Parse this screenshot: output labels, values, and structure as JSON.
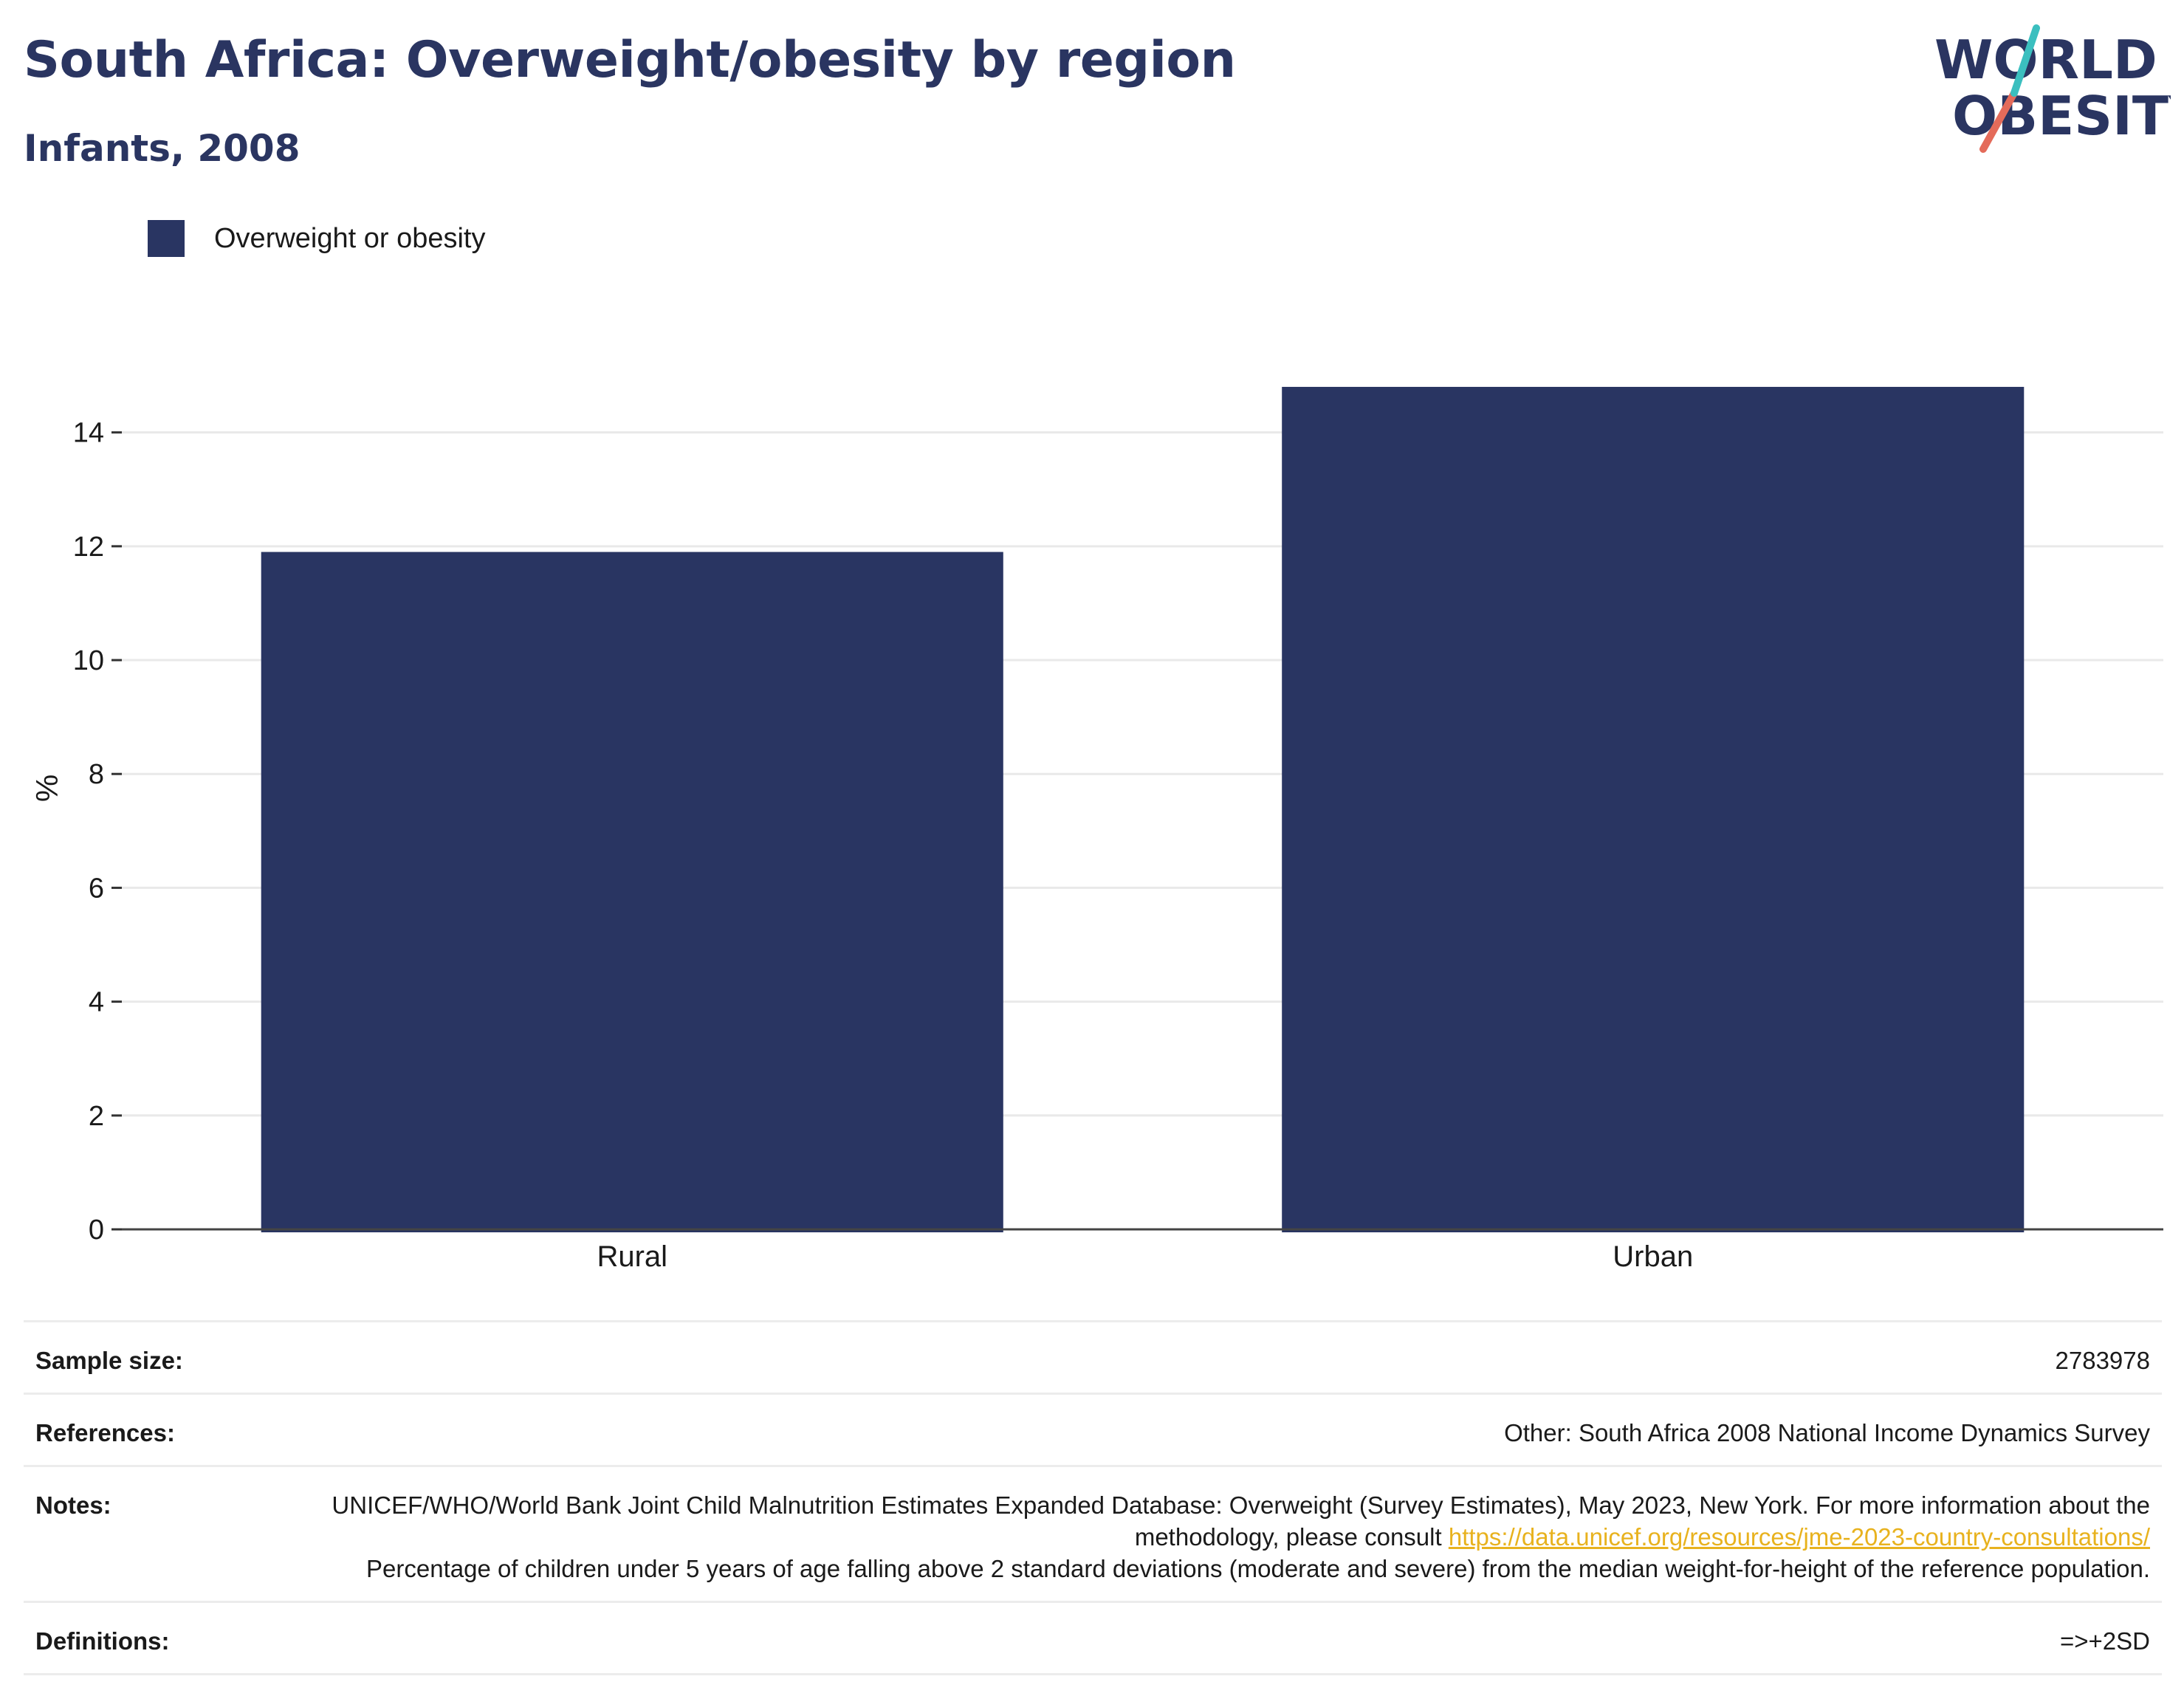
{
  "header": {
    "title": "South Africa: Overweight/obesity by region",
    "subtitle": "Infants, 2008"
  },
  "logo": {
    "line1": "WORLD",
    "line2": "OBESITY",
    "colors": {
      "navy": "#2a3561",
      "teal": "#3bbfbf",
      "coral": "#e46b5a"
    }
  },
  "legend": {
    "label": "Overweight or obesity",
    "color": "#293562"
  },
  "chart_data": {
    "type": "bar",
    "categories": [
      "Rural",
      "Urban"
    ],
    "series": [
      {
        "name": "Overweight or obesity",
        "values": [
          11.9,
          14.8
        ],
        "color": "#293562"
      }
    ],
    "xlabel": "",
    "ylabel": "%",
    "ylim": [
      0,
      15.5
    ],
    "yticks": [
      0,
      2,
      4,
      6,
      8,
      10,
      12,
      14
    ],
    "grid": true,
    "legend_position": "top-left"
  },
  "meta": {
    "sample_size_label": "Sample size:",
    "sample_size_value": "2783978",
    "references_label": "References:",
    "references_value": "Other: South Africa 2008 National Income Dynamics Survey",
    "notes_label": "Notes:",
    "notes_text_1": "UNICEF/WHO/World Bank Joint Child Malnutrition Estimates Expanded Database: Overweight (Survey Estimates), May 2023, New York. For more information about the methodology, please consult ",
    "notes_link": "https://data.unicef.org/resources/jme-2023-country-consultations/",
    "notes_text_2": "Percentage of children under 5 years of age falling above 2 standard deviations (moderate and severe) from the median weight-for-height of the reference population.",
    "definitions_label": "Definitions:",
    "definitions_value": "=>+2SD",
    "link_color": "#e8b21e"
  }
}
